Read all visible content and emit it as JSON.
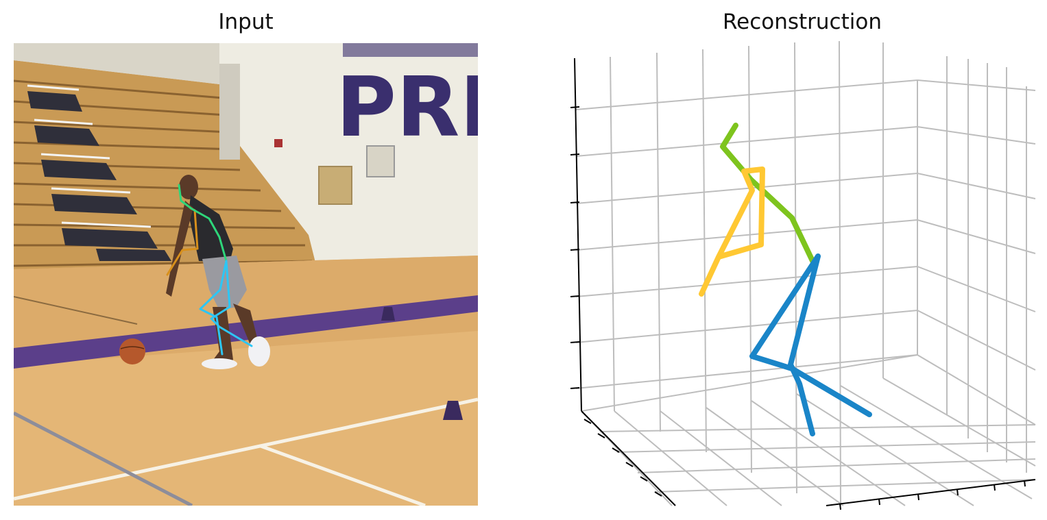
{
  "titles": {
    "left": "Input",
    "right": "Reconstruction"
  },
  "image": {
    "description_tags": [
      "gym-bleachers",
      "basketball-court",
      "player-dribbling",
      "basketball",
      "cones"
    ],
    "banner_text": "PRI"
  },
  "colors": {
    "left_arm_2d": "#d8901c",
    "right_arm_2d": "#2ed67a",
    "legs_2d": "#2cc6f5",
    "upper_3d": "#7ec41e",
    "arm_3d": "#ffc833",
    "legs_3d": "#1a85c8",
    "grid": "#bdbdbd",
    "axis": "#000000"
  }
}
